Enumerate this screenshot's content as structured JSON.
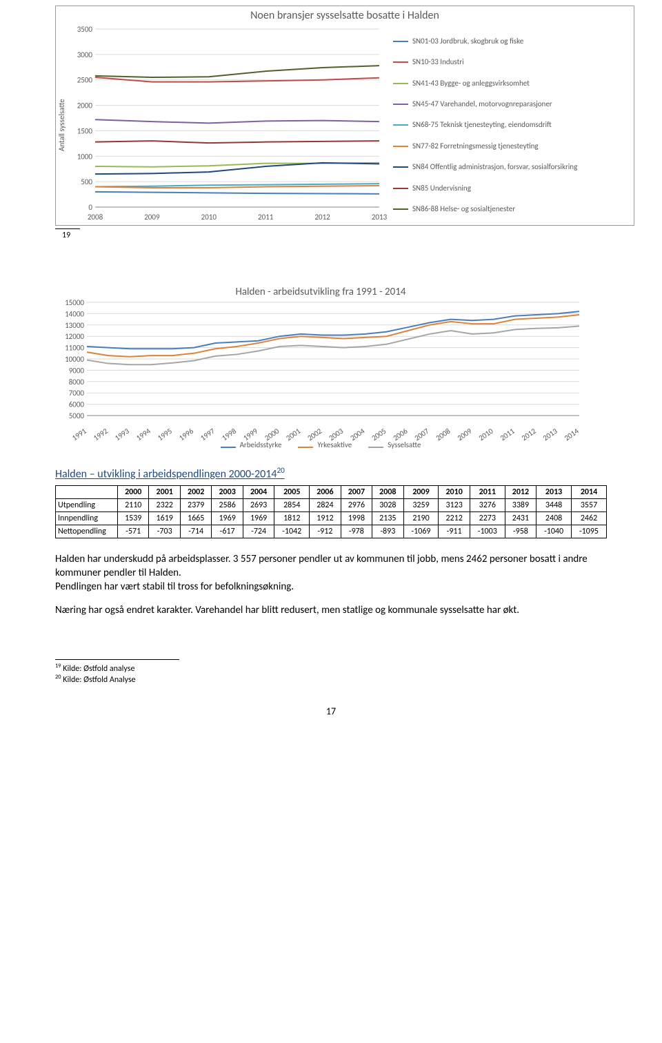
{
  "chart1": {
    "type": "line",
    "title": "Noen bransjer sysselsatte bosatte i Halden",
    "ylabel": "Antall sysselsatte",
    "categories": [
      "2008",
      "2009",
      "2010",
      "2011",
      "2012",
      "2013"
    ],
    "ylim": [
      0,
      3500
    ],
    "ytick_step": 500,
    "grid_color": "#d9d9d9",
    "series": [
      {
        "label": "SN01-03 Jordbruk, skogbruk og fiske",
        "color": "#4a7ebb",
        "values": [
          300,
          290,
          280,
          270,
          265,
          260
        ]
      },
      {
        "label": "SN10-33 Industri",
        "color": "#be4b48",
        "values": [
          2550,
          2460,
          2460,
          2480,
          2500,
          2540
        ]
      },
      {
        "label": "SN41-43 Bygge- og anleggsvirksomhet",
        "color": "#98b954",
        "values": [
          800,
          790,
          810,
          860,
          860,
          870
        ]
      },
      {
        "label": "SN45-47 Varehandel, motorvognreparasjoner",
        "color": "#7d60a0",
        "values": [
          1720,
          1680,
          1650,
          1690,
          1700,
          1680
        ]
      },
      {
        "label": "SN68-75 Teknisk tjenesteyting, eiendomsdrift",
        "color": "#46aac5",
        "values": [
          400,
          410,
          430,
          440,
          450,
          460
        ]
      },
      {
        "label": "SN77-82 Forretningsmessig tjenesteyting",
        "color": "#db843d",
        "values": [
          400,
          380,
          380,
          400,
          410,
          420
        ]
      },
      {
        "label": "SN84 Offentlig administrasjon, forsvar, sosialforsikring",
        "color": "#1f497d",
        "values": [
          650,
          660,
          690,
          800,
          870,
          850
        ]
      },
      {
        "label": "SN85 Undervisning",
        "color": "#953735",
        "values": [
          1280,
          1300,
          1260,
          1280,
          1290,
          1300
        ]
      },
      {
        "label": "SN86-88 Helse- og sosialtjenester",
        "color": "#4f6228",
        "values": [
          2580,
          2550,
          2560,
          2670,
          2740,
          2780
        ]
      }
    ]
  },
  "footnote_top": "19",
  "chart2": {
    "type": "line",
    "title": "Halden - arbeidsutvikling fra 1991 - 2014",
    "categories": [
      "1991",
      "1992",
      "1993",
      "1994",
      "1995",
      "1996",
      "1997",
      "1998",
      "1999",
      "2000",
      "2001",
      "2002",
      "2003",
      "2004",
      "2005",
      "2006",
      "2007",
      "2008",
      "2009",
      "2010",
      "2011",
      "2012",
      "2013",
      "2014"
    ],
    "ylim": [
      5000,
      15000
    ],
    "ytick_step": 1000,
    "grid_color": "#d9d9d9",
    "series": [
      {
        "label": "Arbeidsstyrke",
        "color": "#4a7ebb",
        "values": [
          11100,
          11000,
          10900,
          10900,
          10900,
          11000,
          11400,
          11500,
          11600,
          12000,
          12200,
          12100,
          12100,
          12200,
          12400,
          12800,
          13200,
          13500,
          13400,
          13500,
          13800,
          13900,
          14000,
          14200
        ]
      },
      {
        "label": "Yrkesaktive",
        "color": "#db843d",
        "values": [
          10600,
          10300,
          10200,
          10300,
          10300,
          10500,
          10900,
          11100,
          11400,
          11800,
          12000,
          11900,
          11800,
          11900,
          12000,
          12500,
          13000,
          13300,
          13100,
          13100,
          13500,
          13600,
          13700,
          13900
        ]
      },
      {
        "label": "Sysselsatte",
        "color": "#a5a5a5",
        "values": [
          9900,
          9600,
          9500,
          9500,
          9650,
          9850,
          10250,
          10400,
          10700,
          11100,
          11200,
          11100,
          11000,
          11100,
          11300,
          11750,
          12200,
          12500,
          12200,
          12300,
          12600,
          12700,
          12750,
          12900
        ]
      }
    ]
  },
  "table": {
    "title_html": "Halden – utvikling i arbeidspendlingen 2000-2014",
    "title_sup": "20",
    "headers": [
      "",
      "2000",
      "2001",
      "2002",
      "2003",
      "2004",
      "2005",
      "2006",
      "2007",
      "2008",
      "2009",
      "2010",
      "2011",
      "2012",
      "2013",
      "2014"
    ],
    "rows": [
      [
        "Utpendling",
        "2110",
        "2322",
        "2379",
        "2586",
        "2693",
        "2854",
        "2824",
        "2976",
        "3028",
        "3259",
        "3123",
        "3276",
        "3389",
        "3448",
        "3557"
      ],
      [
        "Innpendling",
        "1539",
        "1619",
        "1665",
        "1969",
        "1969",
        "1812",
        "1912",
        "1998",
        "2135",
        "2190",
        "2212",
        "2273",
        "2431",
        "2408",
        "2462"
      ],
      [
        "Nettopendling",
        "-571",
        "-703",
        "-714",
        "-617",
        "-724",
        "-1042",
        "-912",
        "-978",
        "-893",
        "-1069",
        "-911",
        "-1003",
        "-958",
        "-1040",
        "-1095"
      ]
    ]
  },
  "paragraphs": [
    "Halden har underskudd på arbeidsplasser. 3 557 personer pendler ut av kommunen til jobb, mens 2462 personer bosatt i andre kommuner pendler til Halden.",
    "Pendlingen har vært stabil til tross for befolkningsøkning.",
    "Næring har også endret karakter. Varehandel har blitt redusert, men statlige og kommunale sysselsatte har økt."
  ],
  "footnotes": [
    {
      "num": "19",
      "text": "Kilde: Østfold analyse"
    },
    {
      "num": "20",
      "text": "Kilde: Østfold Analyse"
    }
  ],
  "page_number": "17"
}
